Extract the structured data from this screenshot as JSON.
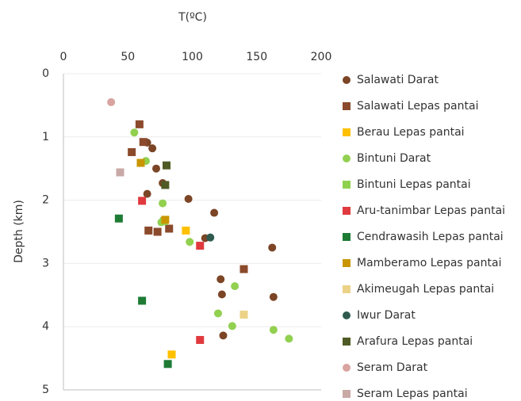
{
  "chart_data": {
    "type": "scatter",
    "x_label": "T(ºC)",
    "y_label": "Depth (km)",
    "xlim": [
      0,
      200
    ],
    "xticks": [
      0,
      50,
      100,
      150,
      200
    ],
    "ylim": [
      0,
      5
    ],
    "yticks": [
      0,
      1,
      2,
      3,
      4,
      5
    ],
    "y_inverted": true,
    "grid": true,
    "series": [
      {
        "name": "Salawati Darat",
        "color": "#7b4526",
        "marker": "circle",
        "x": [
          65,
          69,
          72,
          77,
          65,
          97,
          117,
          162,
          122,
          123,
          163,
          124,
          110
        ],
        "values": [
          1.09,
          1.18,
          1.5,
          1.73,
          1.9,
          1.98,
          2.2,
          2.75,
          3.25,
          3.49,
          3.53,
          4.14,
          2.6
        ]
      },
      {
        "name": "Salawati Lepas pantai",
        "color": "#8b4a2b",
        "marker": "square",
        "x": [
          59,
          62,
          53,
          66,
          73,
          82,
          140
        ],
        "values": [
          0.8,
          1.08,
          1.24,
          2.48,
          2.5,
          2.45,
          3.09
        ]
      },
      {
        "name": "Berau Lepas pantai",
        "color": "#ffc000",
        "marker": "square",
        "x": [
          95,
          84
        ],
        "values": [
          2.48,
          4.44
        ]
      },
      {
        "name": "Bintuni Darat",
        "color": "#92d050",
        "marker": "circle",
        "x": [
          55,
          64,
          77,
          76,
          98,
          133,
          120,
          131,
          163,
          175
        ],
        "values": [
          0.93,
          1.38,
          2.05,
          2.35,
          2.66,
          3.36,
          3.79,
          3.99,
          4.05,
          4.19
        ]
      },
      {
        "name": "Bintuni Lepas pantai",
        "color": "#8fd14f",
        "marker": "square",
        "x": [
          78
        ],
        "values": [
          2.33
        ]
      },
      {
        "name": "Aru-tanimbar Lepas pantai",
        "color": "#e0393e",
        "marker": "square",
        "x": [
          61,
          106,
          106
        ],
        "values": [
          2.01,
          2.72,
          4.21
        ]
      },
      {
        "name": "Cendrawasih Lepas pantai",
        "color": "#1e7b34",
        "marker": "square",
        "x": [
          43,
          61,
          81
        ],
        "values": [
          2.29,
          3.59,
          4.59
        ]
      },
      {
        "name": "Mamberamo Lepas pantai",
        "color": "#c99600",
        "marker": "square",
        "x": [
          60,
          79
        ],
        "values": [
          1.41,
          2.31
        ]
      },
      {
        "name": "Akimeugah Lepas pantai",
        "color": "#ecd287",
        "marker": "square",
        "x": [
          140
        ],
        "values": [
          3.81
        ]
      },
      {
        "name": "Iwur Darat",
        "color": "#2e5b4e",
        "marker": "circle",
        "x": [
          114
        ],
        "values": [
          2.59
        ]
      },
      {
        "name": "Arafura Lepas pantai",
        "color": "#4f5b24",
        "marker": "square",
        "x": [
          80,
          79
        ],
        "values": [
          1.45,
          1.76
        ]
      },
      {
        "name": "Seram Darat",
        "color": "#d8a3a0",
        "marker": "circle",
        "x": [
          37
        ],
        "values": [
          0.45
        ]
      },
      {
        "name": "Seram Lepas pantai",
        "color": "#c9a9a6",
        "marker": "square",
        "x": [
          44
        ],
        "values": [
          1.56
        ]
      }
    ]
  }
}
